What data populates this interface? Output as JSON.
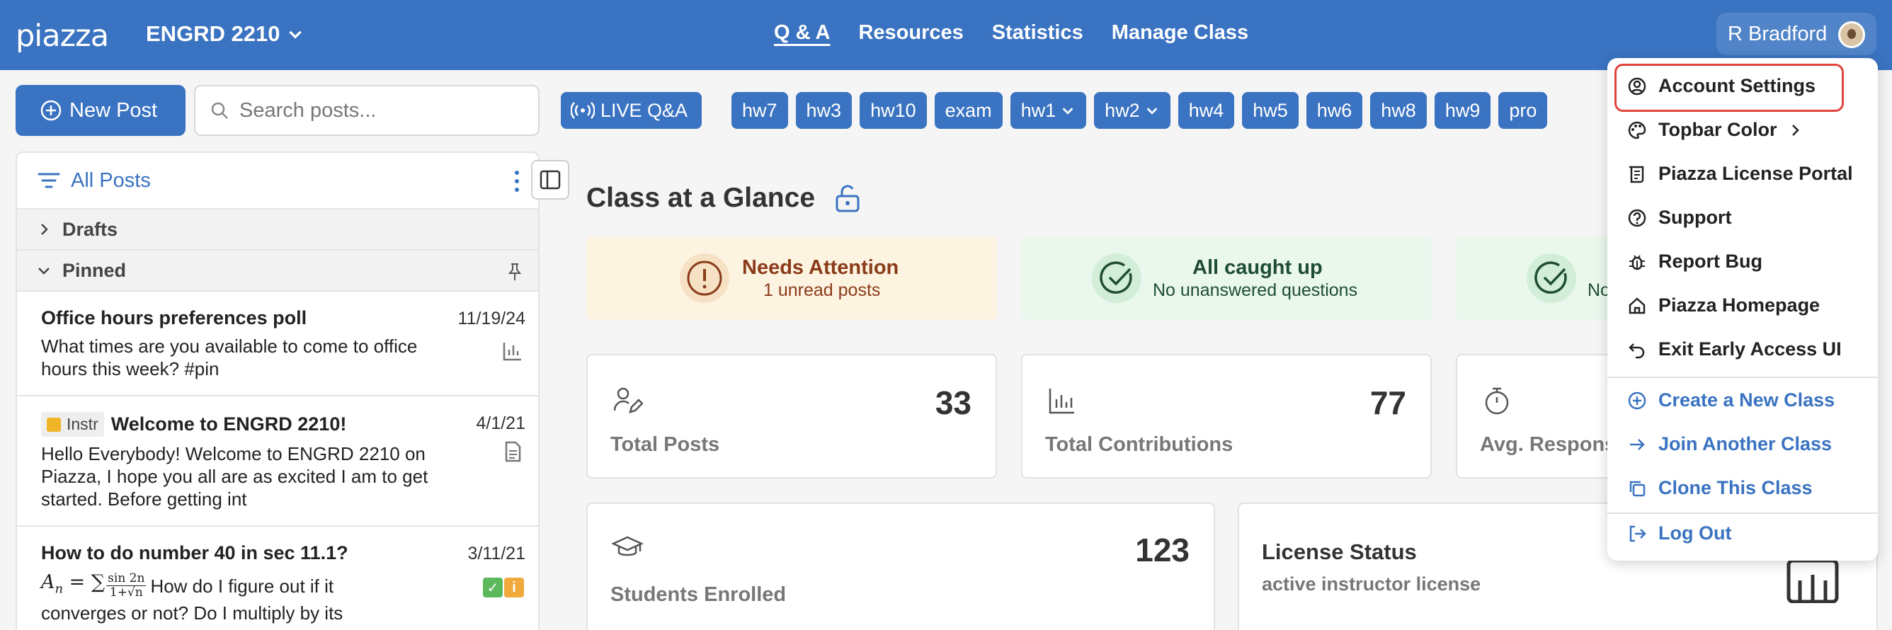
{
  "topbar": {
    "logo": "piazza",
    "class_name": "ENGRD 2210",
    "nav": [
      "Q & A",
      "Resources",
      "Statistics",
      "Manage Class"
    ],
    "user_name": "R Bradford"
  },
  "toolbar": {
    "new_post": "New Post",
    "search_placeholder": "Search posts...",
    "live_qa": "LIVE Q&A",
    "tags": [
      "hw7",
      "hw3",
      "hw10",
      "exam",
      "hw1",
      "hw2",
      "hw4",
      "hw5",
      "hw6",
      "hw8",
      "hw9",
      "pro"
    ]
  },
  "sidebar": {
    "filter": "All Posts",
    "drafts": "Drafts",
    "pinned": "Pinned",
    "posts": [
      {
        "title": "Office hours preferences poll",
        "date": "11/19/24",
        "body": "What times are you available to come to office hours this week? #pin"
      },
      {
        "badge": "Instr",
        "title": "Welcome to ENGRD 2210!",
        "date": "4/1/21",
        "body": "Hello Everybody! Welcome to ENGRD 2210 on Piazza, I hope you all are as excited I am to get started. Before getting int"
      },
      {
        "title": "How to do number 40 in sec 11.1?",
        "date": "3/11/21",
        "math": "A",
        "math_sub": "n",
        "math_eq": " = ∑ ",
        "frac_num": "sin 2n",
        "frac_den": "1+√n",
        "body_inline": "How do I figure out if it",
        "body2": "converges or not? Do I multiply by its"
      }
    ]
  },
  "main": {
    "heading": "Class at a Glance",
    "status": [
      {
        "title": "Needs Attention",
        "sub": "1 unread posts"
      },
      {
        "title": "All caught up",
        "sub": "No unanswered questions"
      },
      {
        "title": "",
        "sub": "No"
      }
    ],
    "stats": [
      {
        "label": "Total Posts",
        "value": "33"
      },
      {
        "label": "Total Contributions",
        "value": "77"
      },
      {
        "label": "Avg. Respons",
        "value": ""
      },
      {
        "label": "Students Enrolled",
        "value": "123"
      }
    ],
    "license": {
      "title": "License Status",
      "sub": "active instructor license"
    }
  },
  "menu": {
    "items": [
      "Account Settings",
      "Topbar Color",
      "Piazza License Portal",
      "Support",
      "Report Bug",
      "Piazza Homepage",
      "Exit Early Access UI"
    ],
    "class_items": [
      "Create a New Class",
      "Join Another Class",
      "Clone This Class"
    ],
    "logout": "Log Out"
  },
  "colors": {
    "brand": "#3a73c1",
    "highlight": "#e0443a",
    "attention_bg": "#fdf3e1",
    "caught_up_bg": "#e9f7ec"
  }
}
